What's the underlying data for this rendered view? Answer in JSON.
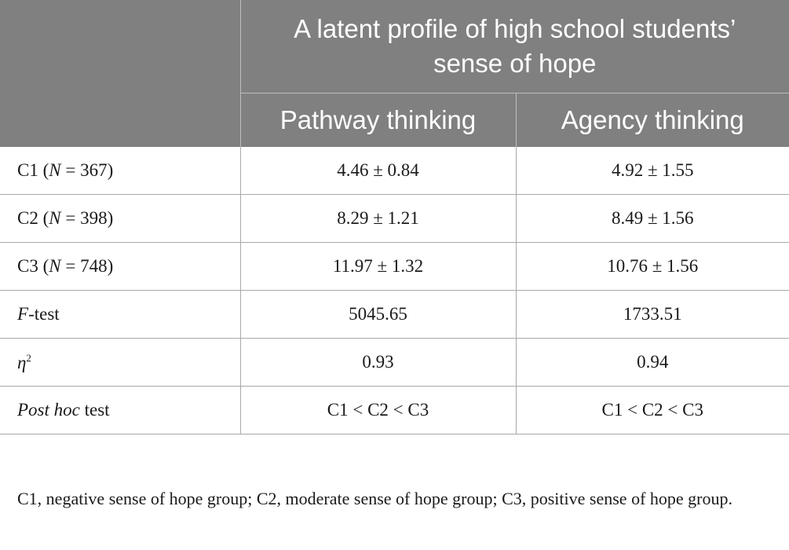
{
  "table": {
    "group_header": "A latent profile of high school students’ sense of hope",
    "columns": [
      "Pathway thinking",
      "Agency thinking"
    ],
    "rows": [
      {
        "label_prefix": "C1 (",
        "label_italic": "N",
        "label_suffix": " = 367)",
        "pathway": "4.46 ± 0.84",
        "agency": "4.92 ± 1.55"
      },
      {
        "label_prefix": "C2 (",
        "label_italic": "N",
        "label_suffix": " = 398)",
        "pathway": "8.29 ± 1.21",
        "agency": "8.49 ± 1.56"
      },
      {
        "label_prefix": "C3 (",
        "label_italic": "N",
        "label_suffix": " = 748)",
        "pathway": "11.97 ± 1.32",
        "agency": "10.76 ± 1.56"
      },
      {
        "label_italic": "F",
        "label_suffix": "-test",
        "pathway": "5045.65",
        "agency": "1733.51"
      },
      {
        "label_italic": "η",
        "label_sup": "2",
        "pathway": "0.93",
        "agency": "0.94"
      },
      {
        "label_italic": "Post hoc",
        "label_suffix": " test",
        "pathway": "C1 < C2 < C3",
        "agency": "C1 < C2 < C3"
      }
    ]
  },
  "footnote": "C1, negative sense of hope group; C2, moderate sense of hope group; C3, positive sense of hope group."
}
